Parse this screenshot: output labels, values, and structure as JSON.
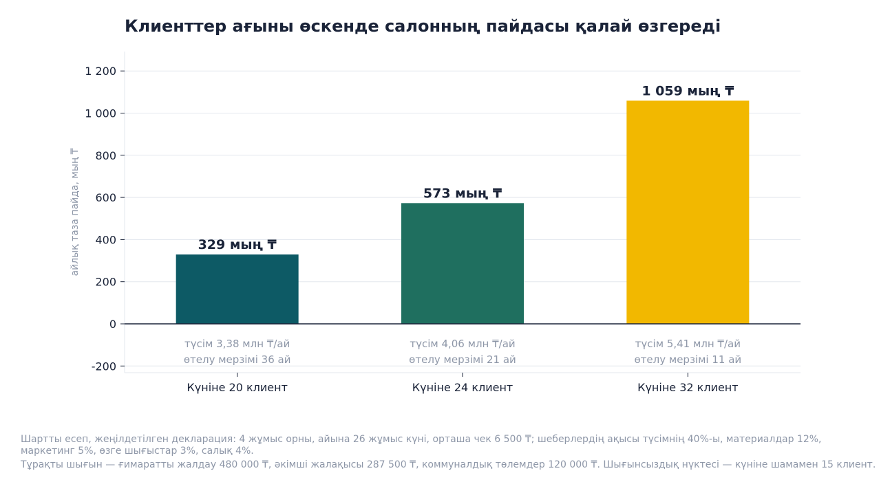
{
  "chart_data": {
    "type": "bar",
    "title": "Клиенттер ағыны өскенде салонның пайдасы қалай өзгереді",
    "ylabel": "айлық таза пайда, мың ₸",
    "xlabel": "",
    "categories": [
      "Күніне 20 клиент",
      "Күніне 24 клиент",
      "Күніне 32 клиент"
    ],
    "values": [
      329,
      573,
      1059
    ],
    "colors": [
      "#0d5a65",
      "#1f6f5f",
      "#f2b800"
    ],
    "data_labels": [
      "329 мың ₸",
      "573 мың ₸",
      "1 059 мың ₸"
    ],
    "annotations": [
      [
        "түсім 3,38 млн ₸/ай",
        "өтелу мерзімі 36 ай"
      ],
      [
        "түсім 4,06 млн ₸/ай",
        "өтелу мерзімі 21 ай"
      ],
      [
        "түсім 5,41 млн ₸/ай",
        "өтелу мерзімі 11 ай"
      ]
    ],
    "ylim": [
      -230,
      1300
    ],
    "yticks": [
      -200,
      0,
      200,
      400,
      600,
      800,
      1000,
      1200
    ],
    "ytick_labels": [
      "-200",
      "0",
      "200",
      "400",
      "600",
      "800",
      "1 000",
      "1 200"
    ],
    "grid": true,
    "legend": "none"
  },
  "footnotes": [
    "Шартты есеп, жеңілдетілген декларация: 4 жұмыс орны, айына 26 жұмыс күні, орташа чек 6 500 ₸; шеберлердің ақысы түсімнің 40%-ы, материалдар 12%, маркетинг 5%, өзге шығыстар 3%, салық 4%.",
    "Тұрақты шығын — ғимаратты жалдау 480 000 ₸, әкімші жалақысы 287 500 ₸, коммуналдық төлемдер 120 000 ₸. Шығынсыздық нүктесі — күніне шамамен 15 клиент."
  ]
}
